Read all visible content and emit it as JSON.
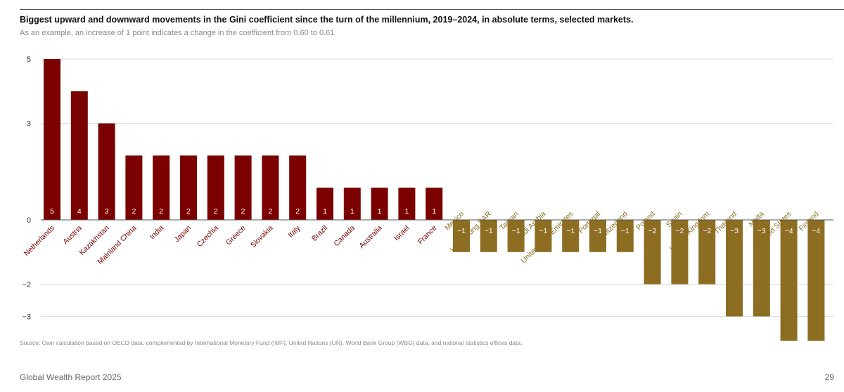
{
  "header": {
    "title": "Biggest upward and downward movements in the Gini coefficient since the turn of the millennium, 2019–2024, in absolute terms, selected markets.",
    "subtitle": "As an example, an increase of 1 point indicates a change in the coefficient from 0.60 to 0.61"
  },
  "source": "Source: Own calculation based on OECD data, complemented by International Monetary Fund (IMF), United Nations (UN), World Bank Group (WBG) data, and national statistics offices data.",
  "footer": {
    "report": "Global Wealth Report 2025",
    "page": "29"
  },
  "colors": {
    "positive": "#7b0000",
    "negative": "#8c6d22",
    "grid": "#d9d9d9",
    "axis": "#555555"
  },
  "chart_data": {
    "type": "bar",
    "categories": [
      "Netherlands",
      "Austria",
      "Kazakhstan",
      "Mainland China",
      "India",
      "Japan",
      "Czechia",
      "Greece",
      "Slovakia",
      "Italy",
      "Brazil",
      "Canada",
      "Australia",
      "Israel",
      "France",
      "Mexico",
      "Hong Kong SAR",
      "Taiwan",
      "Saudi Arabia",
      "United Arab Emirates",
      "Portugal",
      "Switzerland",
      "Poland",
      "Spain",
      "United Kingdom",
      "Thailand",
      "Malta",
      "United States",
      "Finland"
    ],
    "values": [
      5,
      4,
      3,
      2,
      2,
      2,
      2,
      2,
      2,
      2,
      1,
      1,
      1,
      1,
      1,
      -1,
      -1,
      -1,
      -1,
      -1,
      -1,
      -1,
      -2,
      -2,
      -2,
      -3,
      -3,
      -4,
      -4
    ],
    "value_labels": [
      "5",
      "4",
      "3",
      "2",
      "2",
      "2",
      "2",
      "2",
      "2",
      "2",
      "1",
      "1",
      "1",
      "1",
      "1",
      "−1",
      "−1",
      "−1",
      "−1",
      "−1",
      "−1",
      "−1",
      "−2",
      "−2",
      "−2",
      "−3",
      "−3",
      "−4",
      "−4"
    ],
    "yticks": [
      {
        "value": 5,
        "label": "5"
      },
      {
        "value": 3,
        "label": "3"
      },
      {
        "value": 0,
        "label": "0"
      },
      {
        "value": -2,
        "label": "−2"
      },
      {
        "value": -3,
        "label": "−3"
      }
    ],
    "grid": true,
    "ylim": [
      -4,
      5
    ]
  }
}
